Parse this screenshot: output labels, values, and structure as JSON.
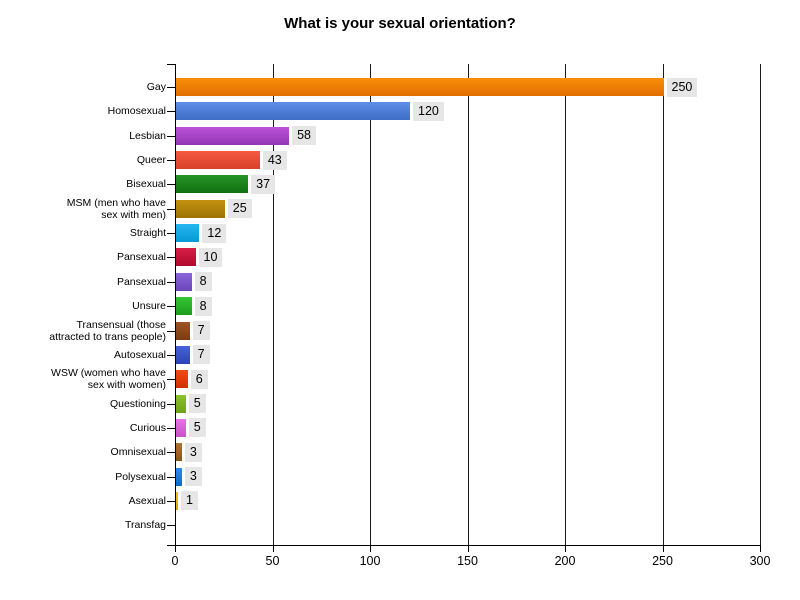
{
  "chart_data": {
    "type": "bar",
    "orientation": "horizontal",
    "title": "What is your sexual orientation?",
    "xlabel": "",
    "ylabel": "",
    "xlim": [
      0,
      300
    ],
    "x_ticks": [
      0,
      50,
      100,
      150,
      200,
      250,
      300
    ],
    "grid": "vertical-on",
    "legend": "none",
    "background_color": "#ffffff",
    "axis_color": "#000000",
    "gridline_color": "#1a1a1a",
    "value_label_bg": "#e6e6e6",
    "text_color": "#000000",
    "categories": [
      "Gay",
      "Homosexual",
      "Lesbian",
      "Queer",
      "Bisexual",
      "MSM (men who have\nsex with men)",
      "Straight",
      "Pansexual",
      "Pansexual",
      "Unsure",
      "Transensual (those\nattracted to trans people)",
      "Autosexual",
      "WSW (women who have\nsex with women)",
      "Questioning",
      "Curious",
      "Omnisexual",
      "Polysexual",
      "Asexual",
      "Transfag"
    ],
    "values": [
      250,
      120,
      58,
      43,
      37,
      25,
      12,
      10,
      8,
      8,
      7,
      7,
      6,
      5,
      5,
      3,
      3,
      1,
      0
    ],
    "bar_colors": [
      {
        "top": "#fa8e0a",
        "bottom": "#e06e00"
      },
      {
        "top": "#5e8fe8",
        "bottom": "#3f6cc4"
      },
      {
        "top": "#bb52d8",
        "bottom": "#9237b4"
      },
      {
        "top": "#f65b41",
        "bottom": "#d7402a"
      },
      {
        "top": "#279427",
        "bottom": "#0f700f"
      },
      {
        "top": "#c39110",
        "bottom": "#9c7405"
      },
      {
        "top": "#26b5f0",
        "bottom": "#0599d8"
      },
      {
        "top": "#d71e45",
        "bottom": "#b00a2d"
      },
      {
        "top": "#8b64dc",
        "bottom": "#6a46b8"
      },
      {
        "top": "#35c535",
        "bottom": "#1d9d1d"
      },
      {
        "top": "#9d5526",
        "bottom": "#7b3a11"
      },
      {
        "top": "#4763db",
        "bottom": "#2b44b4"
      },
      {
        "top": "#f24a12",
        "bottom": "#cf3202"
      },
      {
        "top": "#8cc22e",
        "bottom": "#6da315"
      },
      {
        "top": "#e871e8",
        "bottom": "#c851c8"
      },
      {
        "top": "#b07434",
        "bottom": "#8b5516"
      },
      {
        "top": "#2e8bec",
        "bottom": "#0d69ce"
      },
      {
        "top": "#f2c41d",
        "bottom": "#d9a801"
      },
      null
    ]
  }
}
